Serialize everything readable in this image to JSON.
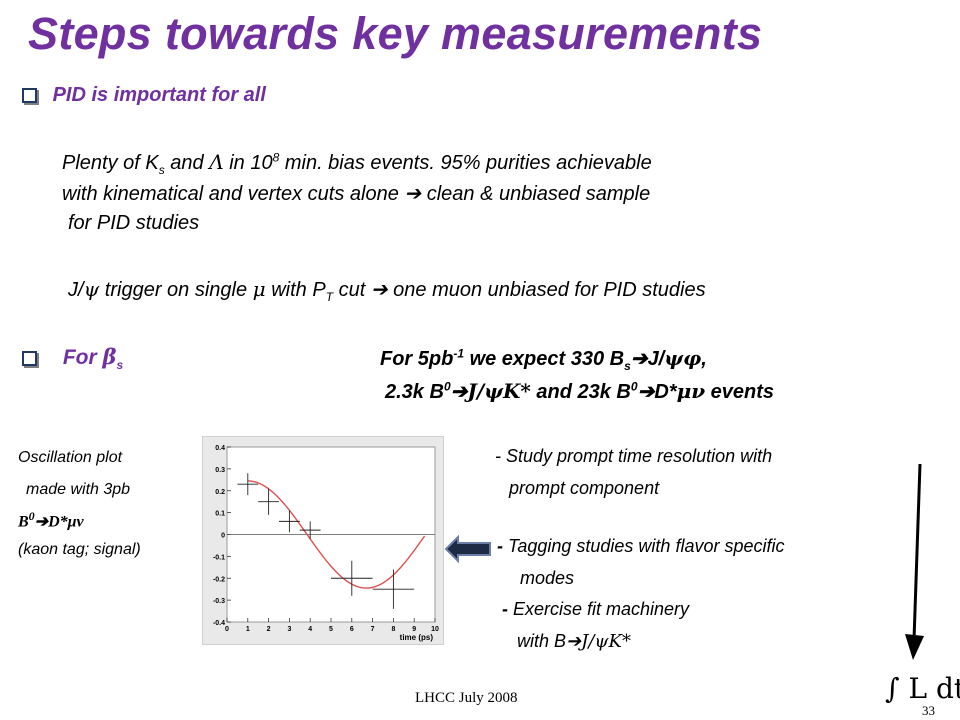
{
  "slide": {
    "title": "Steps towards key measurements",
    "bullet1": {
      "heading": "PID is important for all",
      "line1_a": "Plenty of K",
      "line1_sub": "s",
      "line1_b": " and ",
      "line1_lambda": "Λ",
      "line1_c": " in 10",
      "line1_sup": "8",
      "line1_d": "  min. bias events. 95% purities achievable",
      "line2_a": "with kinematical and vertex cuts alone ",
      "line2_arrow": "➔",
      "line2_b": " clean & unbiased sample",
      "line3": "for PID studies",
      "line4_a": "J/",
      "line4_psi": "ψ",
      "line4_b": " trigger on single ",
      "line4_mu": "μ",
      "line4_c": " with P",
      "line4_sub": "T",
      "line4_d": " cut ",
      "line4_arrow": "➔",
      "line4_e": " one muon unbiased for PID studies"
    },
    "bullet2": {
      "heading_a": "For ",
      "heading_beta": "β",
      "heading_sub": "s",
      "expect_a": "For 5pb",
      "expect_sup": "-1",
      "expect_b": " we expect 330 B",
      "expect_sub": "s",
      "expect_arrow": "➔",
      "expect_c": "J/",
      "expect_psiphi": "ψφ",
      "expect_d": ",",
      "line2_a": "2.3k B",
      "line2_sup": "0",
      "line2_arrow": "➔",
      "line2_decay": "J/ψK*",
      "line2_b": " and 23k B",
      "line2_sup2": "0",
      "line2_arrow2": "➔",
      "line2_c": "D*",
      "line2_munu": "μν",
      "line2_d": "  events"
    },
    "left_caption": {
      "l1": "Oscillation plot",
      "l2": "made with 3pb",
      "l3_b": "B",
      "l3_sup": "0",
      "l3_arrow": "➔",
      "l3_rest": "D*μν",
      "l4": "(kaon tag; signal)"
    },
    "right_list": {
      "i1_dash": "- ",
      "i1_a": "Study prompt time resolution with",
      "i1_b": "prompt component",
      "i2_dash": "- ",
      "i2_a": "Tagging studies with flavor specific",
      "i2_b": "modes",
      "i3_dash": "- ",
      "i3_a": "Exercise fit machinery",
      "i3_b_a": "with  B",
      "i3_b_arrow": "➔",
      "i3_b_decay": "J/ψK*"
    },
    "plot": {
      "y_ticks": [
        "0.4",
        "0.3",
        "0.2",
        "0.1",
        "0",
        "-0.1",
        "-0.2",
        "-0.3",
        "-0.4"
      ],
      "x_ticks": [
        "0",
        "1",
        "2",
        "3",
        "4",
        "5",
        "6",
        "7",
        "8",
        "9",
        "10"
      ],
      "x_label": "time (ps)"
    },
    "lumi_label": "∫ L dt",
    "footer": "LHCC July 2008",
    "page_number": "33"
  },
  "chart_data": {
    "type": "scatter",
    "x": [
      1,
      2,
      3,
      4,
      6,
      8
    ],
    "y": [
      0.23,
      0.15,
      0.06,
      0.02,
      -0.2,
      -0.25
    ],
    "xlim": [
      0,
      10
    ],
    "ylim": [
      -0.4,
      0.4
    ],
    "xlabel": "time (ps)",
    "ylabel": "",
    "title": "",
    "grid": false,
    "fit_curve": "cosine oscillation"
  }
}
